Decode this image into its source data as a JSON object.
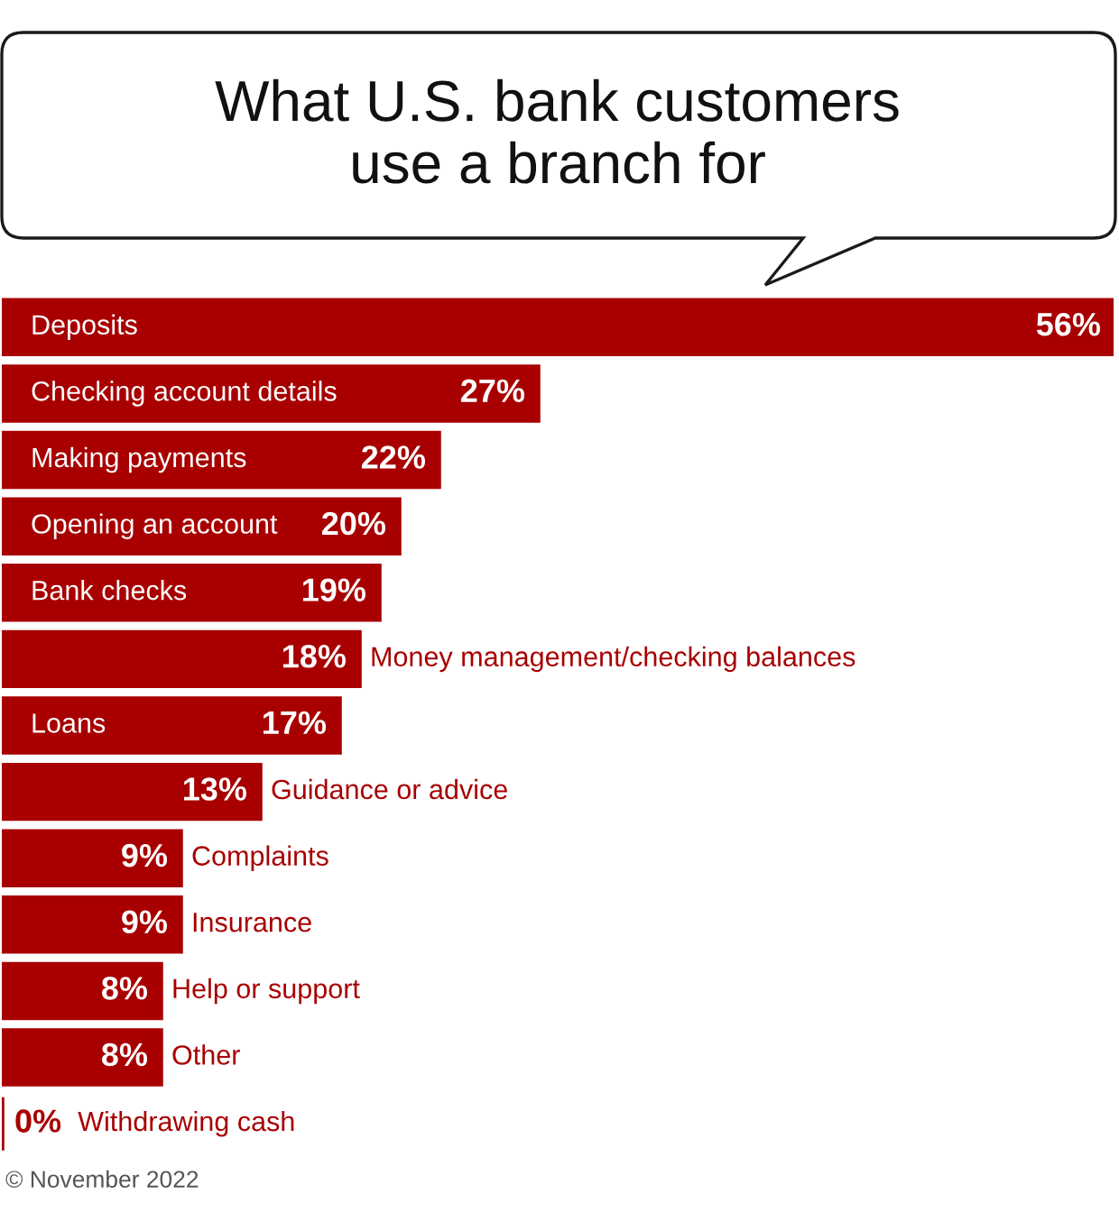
{
  "chart_data": {
    "type": "bar",
    "orientation": "horizontal",
    "title": "What U.S. bank customers\nuse a branch for",
    "categories": [
      "Deposits",
      "Checking account details",
      "Making payments",
      "Opening an account",
      "Bank checks",
      "Money management/checking balances",
      "Loans",
      "Guidance or advice",
      "Complaints",
      "Insurance",
      "Help or support",
      "Other",
      "Withdrawing cash"
    ],
    "values": [
      56,
      27,
      22,
      20,
      19,
      18,
      17,
      13,
      9,
      9,
      8,
      8,
      0
    ],
    "value_labels": [
      "56%",
      "27%",
      "22%",
      "20%",
      "19%",
      "18%",
      "17%",
      "13%",
      "9%",
      "9%",
      "8%",
      "8%",
      "0%"
    ],
    "color": "#a80000",
    "annotations": [
      "© November 2022"
    ]
  }
}
